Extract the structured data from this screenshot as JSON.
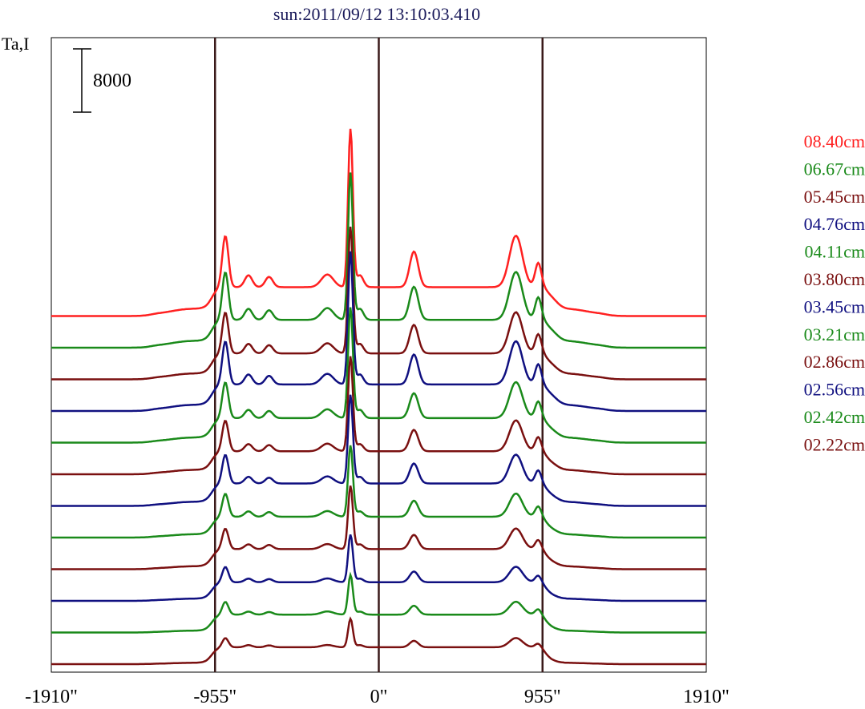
{
  "chart_data": {
    "type": "line",
    "title": "sun:2011/09/12 13:10:03.410",
    "ylabel": "Ta,I",
    "scale_bar_label": "8000",
    "scale_bar_value": 8000,
    "xlim": [
      -1910,
      1910
    ],
    "x_ticks": [
      {
        "value": -1910,
        "label": "-1910\""
      },
      {
        "value": -955,
        "label": "-955\""
      },
      {
        "value": 0,
        "label": "0\""
      },
      {
        "value": 955,
        "label": "955\""
      },
      {
        "value": 1910,
        "label": "1910\""
      }
    ],
    "vertical_lines": [
      -955,
      0,
      955
    ],
    "legend_position": "right",
    "series": [
      {
        "name": "08.40cm",
        "color": "#ff2020",
        "base": 44000,
        "peak_scale": 1.0
      },
      {
        "name": "06.67cm",
        "color": "#1a8a1a",
        "base": 40000,
        "peak_scale": 0.93
      },
      {
        "name": "05.45cm",
        "color": "#7a1010",
        "base": 36000,
        "peak_scale": 0.8
      },
      {
        "name": "04.76cm",
        "color": "#101080",
        "base": 32000,
        "peak_scale": 0.84
      },
      {
        "name": "04.11cm",
        "color": "#1a8a1a",
        "base": 28000,
        "peak_scale": 0.7
      },
      {
        "name": "03.80cm",
        "color": "#7a1010",
        "base": 24000,
        "peak_scale": 0.6
      },
      {
        "name": "03.45cm",
        "color": "#101080",
        "base": 20000,
        "peak_scale": 0.56
      },
      {
        "name": "03.21cm",
        "color": "#1a8a1a",
        "base": 16000,
        "peak_scale": 0.45
      },
      {
        "name": "02.86cm",
        "color": "#7a1010",
        "base": 12000,
        "peak_scale": 0.4
      },
      {
        "name": "02.56cm",
        "color": "#101080",
        "base": 8000,
        "peak_scale": 0.3
      },
      {
        "name": "02.42cm",
        "color": "#1a8a1a",
        "base": 4000,
        "peak_scale": 0.25
      },
      {
        "name": "02.22cm",
        "color": "#7a1010",
        "base": 0,
        "peak_scale": 0.18
      }
    ]
  },
  "colors": {
    "frame": "#000000",
    "vertical_line": "#3a1a1a",
    "title": "#1a1a5a"
  }
}
